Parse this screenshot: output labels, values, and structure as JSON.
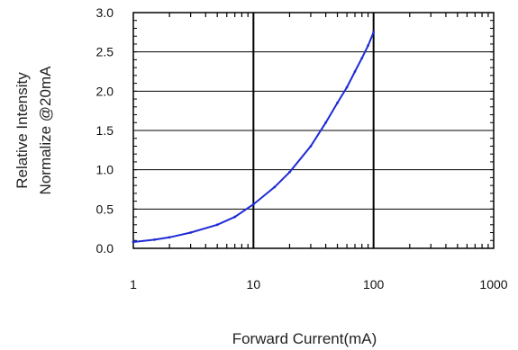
{
  "chart_data": {
    "type": "line",
    "xlabel": "Forward Current(mA)",
    "ylabel_lines": [
      "Relative Intensity",
      "Normalize @20mA"
    ],
    "x_scale": "log",
    "xlim": [
      1,
      1000
    ],
    "ylim": [
      0,
      3
    ],
    "x_ticks": [
      1,
      10,
      100,
      1000
    ],
    "x_tick_labels": [
      "1",
      "10",
      "100",
      "1000"
    ],
    "y_ticks": [
      0,
      0.5,
      1,
      1.5,
      2,
      2.5,
      3
    ],
    "y_tick_labels": [
      "0.0",
      "0.5",
      "1.0",
      "1.5",
      "2.0",
      "2.5",
      "3.0"
    ],
    "grid": true,
    "line_color": "#1f2bd6",
    "series": [
      {
        "x": [
          1,
          1.5,
          2,
          3,
          5,
          7,
          10,
          15,
          20,
          30,
          40,
          50,
          60,
          70,
          80,
          90,
          100
        ],
        "y": [
          0.08,
          0.11,
          0.14,
          0.2,
          0.3,
          0.4,
          0.56,
          0.78,
          0.97,
          1.3,
          1.6,
          1.85,
          2.05,
          2.25,
          2.42,
          2.58,
          2.75
        ]
      }
    ]
  }
}
